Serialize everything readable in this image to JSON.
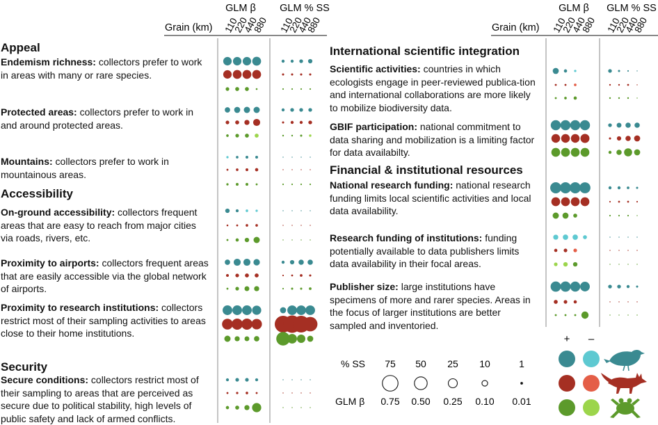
{
  "header": {
    "grain_label": "Grain (km)",
    "col_beta": "GLM β",
    "col_ss": "GLM % SS",
    "grains": [
      "110",
      "220",
      "440",
      "880"
    ]
  },
  "colors": {
    "birds_pos": "#3a8a91",
    "birds_neg": "#5ec9d1",
    "mammals_pos": "#a52f23",
    "mammals_neg": "#e45e47",
    "amphibians_pos": "#5c9a2b",
    "amphibians_neg": "#9cd54b"
  },
  "sections": {
    "appeal": "Appeal",
    "accessibility": "Accessibility",
    "security": "Security",
    "intl": "International scientific integration",
    "financial": "Financial & institutional resources"
  },
  "factors": {
    "endemism": {
      "name": "Endemism richness:",
      "text": " collectors prefer to work in areas with many or rare species."
    },
    "protected": {
      "name": "Protected  areas:",
      "text": " collectors prefer to work in and around protected areas."
    },
    "mountains": {
      "name": "Mountains:",
      "text": " collectors prefer to work in mountainous areas."
    },
    "onground": {
      "name": "On-ground accessibility:",
      "text": " collectors frequent areas that are easy to reach from major cities via roads, rivers, etc."
    },
    "airports": {
      "name": "Proximity to airports:",
      "text": " collectors frequent areas that are easily accessible via the global network of airports."
    },
    "research": {
      "name": "Proximity to research institutions:",
      "text": " collectors restrict most of their sampling activities to areas close to their home institutions."
    },
    "secure": {
      "name": "Secure conditions:",
      "text": " collectors restrict most of their sampling to areas that are perceived as secure due to political stability, high levels of public safety and lack of armed conflicts."
    },
    "scientific": {
      "name": "Scientific activities:",
      "text": " countries in which ecologists engage in peer-reviewed publica-tion and international collaborations are more likely to mobilize biodiversity data."
    },
    "gbif": {
      "name": "GBIF participation:",
      "text": " national commitment to data sharing and mobilization is a limiting factor for data availabilty."
    },
    "funding": {
      "name": "National research funding:",
      "text": " national research funding limits local scientific activities and local data availability."
    },
    "instfunding": {
      "name": "Research funding of institutions:",
      "text": " funding potentially available to data publishers limits data availability in their focal areas."
    },
    "publisher": {
      "name": "Publisher size:",
      "text": " large institutions have specimens of more and rarer species. Areas in the focus of larger institutions are better sampled and inventoried."
    }
  },
  "legend": {
    "plus": "+",
    "minus": "–",
    "ss_label": "% SS",
    "beta_label": "GLM β",
    "ss_values": [
      "75",
      "50",
      "25",
      "10",
      "1"
    ],
    "beta_values": [
      "0.75",
      "0.50",
      "0.25",
      "0.10",
      "0.01"
    ],
    "taxa_icons": [
      "bird-icon",
      "fox-icon",
      "frog-icon"
    ]
  },
  "chart_data": {
    "type": "bubble-grid",
    "grains_km": [
      110,
      220,
      440,
      880
    ],
    "taxa": [
      "birds",
      "mammals",
      "amphibians"
    ],
    "rows": [
      {
        "factor": "endemism",
        "taxon": "birds",
        "beta": [
          0.55,
          0.55,
          0.55,
          0.6
        ],
        "beta_sign": [
          "+",
          "+",
          "+",
          "+"
        ],
        "ss": [
          2,
          2,
          3,
          4
        ],
        "ss_sign": [
          "+",
          "+",
          "+",
          "+"
        ]
      },
      {
        "factor": "endemism",
        "taxon": "mammals",
        "beta": [
          0.55,
          0.6,
          0.6,
          0.6
        ],
        "beta_sign": [
          "+",
          "+",
          "+",
          "+"
        ],
        "ss": [
          1,
          1,
          1,
          1
        ],
        "ss_sign": [
          "+",
          "+",
          "+",
          "+"
        ]
      },
      {
        "factor": "endemism",
        "taxon": "amphibians",
        "beta": [
          0.1,
          0.12,
          0.12,
          0.01
        ],
        "beta_sign": [
          "+",
          "+",
          "+",
          "+"
        ],
        "ss": [
          0.5,
          0.5,
          0.5,
          0.5
        ],
        "ss_sign": [
          "+",
          "+",
          "+",
          "+"
        ]
      },
      {
        "factor": "protected",
        "taxon": "birds",
        "beta": [
          0.22,
          0.28,
          0.3,
          0.3
        ],
        "beta_sign": [
          "+",
          "+",
          "+",
          "+"
        ],
        "ss": [
          2,
          3,
          3,
          3
        ],
        "ss_sign": [
          "+",
          "+",
          "+",
          "+"
        ]
      },
      {
        "factor": "protected",
        "taxon": "mammals",
        "beta": [
          0.1,
          0.12,
          0.2,
          0.38
        ],
        "beta_sign": [
          "+",
          "+",
          "+",
          "+"
        ],
        "ss": [
          1,
          2,
          2,
          3
        ],
        "ss_sign": [
          "+",
          "+",
          "+",
          "+"
        ]
      },
      {
        "factor": "protected",
        "taxon": "amphibians",
        "beta": [
          0.05,
          0.1,
          0.12,
          0.12
        ],
        "beta_sign": [
          "+",
          "+",
          "+",
          "-"
        ],
        "ss": [
          0.6,
          0.6,
          1,
          1.2
        ],
        "ss_sign": [
          "+",
          "+",
          "+",
          "-"
        ]
      },
      {
        "factor": "mountains",
        "taxon": "birds",
        "beta": [
          0.04,
          0.05,
          0.06,
          0.06
        ],
        "beta_sign": [
          "-",
          "+",
          "+",
          "+"
        ],
        "ss": [
          0,
          0,
          0,
          0
        ],
        "ss_sign": [
          "+",
          "+",
          "+",
          "+"
        ]
      },
      {
        "factor": "mountains",
        "taxon": "mammals",
        "beta": [
          0.03,
          0.05,
          0.06,
          0.08
        ],
        "beta_sign": [
          "+",
          "+",
          "+",
          "+"
        ],
        "ss": [
          0,
          0,
          0,
          0
        ],
        "ss_sign": [
          "+",
          "+",
          "+",
          "+"
        ]
      },
      {
        "factor": "mountains",
        "taxon": "amphibians",
        "beta": [
          0.04,
          0.06,
          0.06,
          0.03
        ],
        "beta_sign": [
          "+",
          "+",
          "+",
          "+"
        ],
        "ss": [
          0.5,
          0.5,
          0.5,
          0.5
        ],
        "ss_sign": [
          "+",
          "+",
          "+",
          "+"
        ]
      },
      {
        "factor": "onground",
        "taxon": "birds",
        "beta": [
          0.15,
          0.07,
          0.05,
          0.04
        ],
        "beta_sign": [
          "+",
          "+",
          "-",
          "-"
        ],
        "ss": [
          0,
          0,
          0,
          0
        ],
        "ss_sign": [
          "+",
          "+",
          "+",
          "+"
        ]
      },
      {
        "factor": "onground",
        "taxon": "mammals",
        "beta": [
          0.01,
          0.03,
          0.05,
          0.05
        ],
        "beta_sign": [
          "+",
          "+",
          "+",
          "+"
        ],
        "ss": [
          0,
          0,
          0,
          0
        ],
        "ss_sign": [
          "+",
          "+",
          "+",
          "+"
        ]
      },
      {
        "factor": "onground",
        "taxon": "amphibians",
        "beta": [
          0.03,
          0.08,
          0.15,
          0.3
        ],
        "beta_sign": [
          "+",
          "+",
          "+",
          "+"
        ],
        "ss": [
          0,
          0,
          0,
          0
        ],
        "ss_sign": [
          "+",
          "+",
          "+",
          "+"
        ]
      },
      {
        "factor": "airports",
        "taxon": "birds",
        "beta": [
          0.22,
          0.38,
          0.38,
          0.32
        ],
        "beta_sign": [
          "+",
          "+",
          "+",
          "+"
        ],
        "ss": [
          2,
          4,
          6,
          6
        ],
        "ss_sign": [
          "+",
          "+",
          "+",
          "+"
        ]
      },
      {
        "factor": "airports",
        "taxon": "mammals",
        "beta": [
          0.06,
          0.1,
          0.12,
          0.12
        ],
        "beta_sign": [
          "+",
          "+",
          "+",
          "+"
        ],
        "ss": [
          0.5,
          0.8,
          1.5,
          1
        ],
        "ss_sign": [
          "+",
          "+",
          "+",
          "+"
        ]
      },
      {
        "factor": "airports",
        "taxon": "amphibians",
        "beta": [
          0.03,
          0.1,
          0.18,
          0.2
        ],
        "beta_sign": [
          "+",
          "+",
          "+",
          "+"
        ],
        "ss": [
          0.5,
          1,
          1,
          1.5
        ],
        "ss_sign": [
          "+",
          "+",
          "+",
          "+"
        ]
      },
      {
        "factor": "research",
        "taxon": "birds",
        "beta": [
          0.72,
          0.72,
          0.72,
          0.65
        ],
        "beta_sign": [
          "+",
          "+",
          "+",
          "+"
        ],
        "ss": [
          8,
          20,
          20,
          20
        ],
        "ss_sign": [
          "+",
          "+",
          "+",
          "+"
        ]
      },
      {
        "factor": "research",
        "taxon": "mammals",
        "beta": [
          0.9,
          0.95,
          0.95,
          0.85
        ],
        "beta_sign": [
          "+",
          "+",
          "+",
          "+"
        ],
        "ss": [
          60,
          65,
          60,
          45
        ],
        "ss_sign": [
          "+",
          "+",
          "+",
          "+"
        ]
      },
      {
        "factor": "research",
        "taxon": "amphibians",
        "beta": [
          0.3,
          0.2,
          0.18,
          0.22
        ],
        "beta_sign": [
          "+",
          "+",
          "+",
          "+"
        ],
        "ss": [
          40,
          20,
          15,
          8
        ],
        "ss_sign": [
          "+",
          "+",
          "+",
          "+"
        ]
      },
      {
        "factor": "secure",
        "taxon": "birds",
        "beta": [
          0.07,
          0.1,
          0.1,
          0.07
        ],
        "beta_sign": [
          "+",
          "+",
          "+",
          "+"
        ],
        "ss": [
          0,
          0,
          0,
          0
        ],
        "ss_sign": [
          "+",
          "+",
          "+",
          "+"
        ]
      },
      {
        "factor": "secure",
        "taxon": "mammals",
        "beta": [
          0.03,
          0.04,
          0.05,
          0.03
        ],
        "beta_sign": [
          "+",
          "+",
          "+",
          "+"
        ],
        "ss": [
          0,
          0,
          0,
          0
        ],
        "ss_sign": [
          "+",
          "+",
          "+",
          "+"
        ]
      },
      {
        "factor": "secure",
        "taxon": "amphibians",
        "beta": [
          0.08,
          0.12,
          0.2,
          0.65
        ],
        "beta_sign": [
          "+",
          "+",
          "+",
          "+"
        ],
        "ss": [
          0,
          0,
          0,
          0
        ],
        "ss_sign": [
          "+",
          "+",
          "+",
          "+"
        ]
      },
      {
        "factor": "scientific",
        "taxon": "birds",
        "beta": [
          0.28,
          0.08,
          0.04,
          0
        ],
        "beta_sign": [
          "+",
          "+",
          "-",
          "+"
        ],
        "ss": [
          3,
          1,
          0.5,
          0
        ],
        "ss_sign": [
          "+",
          "+",
          "+",
          "+"
        ]
      },
      {
        "factor": "scientific",
        "taxon": "mammals",
        "beta": [
          0.03,
          0.03,
          0.05,
          0
        ],
        "beta_sign": [
          "+",
          "+",
          "-",
          "+"
        ],
        "ss": [
          0.6,
          0.6,
          0.8,
          0
        ],
        "ss_sign": [
          "+",
          "+",
          "+",
          "+"
        ]
      },
      {
        "factor": "scientific",
        "taxon": "amphibians",
        "beta": [
          0.03,
          0.05,
          0.08,
          0
        ],
        "beta_sign": [
          "+",
          "+",
          "+",
          "+"
        ],
        "ss": [
          0.6,
          0.6,
          0.6,
          0
        ],
        "ss_sign": [
          "+",
          "+",
          "+",
          "+"
        ]
      },
      {
        "factor": "gbif",
        "taxon": "birds",
        "beta": [
          0.78,
          0.78,
          0.78,
          0.78
        ],
        "beta_sign": [
          "+",
          "+",
          "+",
          "+"
        ],
        "ss": [
          3,
          5,
          6,
          6
        ],
        "ss_sign": [
          "+",
          "+",
          "+",
          "+"
        ]
      },
      {
        "factor": "gbif",
        "taxon": "mammals",
        "beta": [
          0.58,
          0.58,
          0.58,
          0.62
        ],
        "beta_sign": [
          "+",
          "+",
          "+",
          "+"
        ],
        "ss": [
          1,
          4,
          6,
          8
        ],
        "ss_sign": [
          "+",
          "+",
          "+",
          "+"
        ]
      },
      {
        "factor": "gbif",
        "taxon": "amphibians",
        "beta": [
          0.6,
          0.6,
          0.6,
          0.6
        ],
        "beta_sign": [
          "+",
          "+",
          "+",
          "+"
        ],
        "ss": [
          2,
          6,
          14,
          8
        ],
        "ss_sign": [
          "+",
          "+",
          "+",
          "+"
        ]
      },
      {
        "factor": "funding",
        "taxon": "birds",
        "beta": [
          0.95,
          0.95,
          0.95,
          0.92
        ],
        "beta_sign": [
          "+",
          "+",
          "+",
          "+"
        ],
        "ss": [
          2,
          2,
          1.5,
          1
        ],
        "ss_sign": [
          "+",
          "+",
          "+",
          "+"
        ]
      },
      {
        "factor": "funding",
        "taxon": "mammals",
        "beta": [
          0.6,
          0.6,
          0.6,
          0.6
        ],
        "beta_sign": [
          "+",
          "+",
          "+",
          "+"
        ],
        "ss": [
          0.5,
          0.8,
          0.8,
          0.5
        ],
        "ss_sign": [
          "+",
          "+",
          "+",
          "+"
        ]
      },
      {
        "factor": "funding",
        "taxon": "amphibians",
        "beta": [
          0.3,
          0.28,
          0.12,
          0
        ],
        "beta_sign": [
          "+",
          "+",
          "+",
          "+"
        ],
        "ss": [
          0.5,
          0.5,
          0.5,
          0
        ],
        "ss_sign": [
          "+",
          "+",
          "+",
          "+"
        ]
      },
      {
        "factor": "instfunding",
        "taxon": "birds",
        "beta": [
          0.2,
          0.22,
          0.22,
          0.12
        ],
        "beta_sign": [
          "-",
          "-",
          "-",
          "-"
        ],
        "ss": [
          0,
          0,
          0,
          0
        ],
        "ss_sign": [
          "+",
          "+",
          "+",
          "+"
        ]
      },
      {
        "factor": "instfunding",
        "taxon": "mammals",
        "beta": [
          0.08,
          0.1,
          0.1,
          0
        ],
        "beta_sign": [
          "+",
          "+",
          "-",
          "+"
        ],
        "ss": [
          0,
          0,
          0,
          0
        ],
        "ss_sign": [
          "+",
          "+",
          "+",
          "+"
        ]
      },
      {
        "factor": "instfunding",
        "taxon": "amphibians",
        "beta": [
          0.1,
          0.15,
          0.15,
          0
        ],
        "beta_sign": [
          "-",
          "-",
          "+",
          "+"
        ],
        "ss": [
          0,
          0,
          0,
          0
        ],
        "ss_sign": [
          "+",
          "+",
          "+",
          "+"
        ]
      },
      {
        "factor": "publisher",
        "taxon": "birds",
        "beta": [
          0.82,
          0.82,
          0.78,
          0.72
        ],
        "beta_sign": [
          "+",
          "+",
          "+",
          "+"
        ],
        "ss": [
          3,
          3,
          2,
          1
        ],
        "ss_sign": [
          "+",
          "+",
          "+",
          "+"
        ]
      },
      {
        "factor": "publisher",
        "taxon": "mammals",
        "beta": [
          0.12,
          0.1,
          0.08,
          0
        ],
        "beta_sign": [
          "+",
          "+",
          "+",
          "+"
        ],
        "ss": [
          0,
          0,
          0,
          0
        ],
        "ss_sign": [
          "+",
          "+",
          "+",
          "+"
        ]
      },
      {
        "factor": "publisher",
        "taxon": "amphibians",
        "beta": [
          0.03,
          0.03,
          0.03,
          0.4
        ],
        "beta_sign": [
          "+",
          "+",
          "+",
          "+"
        ],
        "ss": [
          0,
          0,
          0,
          0
        ],
        "ss_sign": [
          "+",
          "+",
          "+",
          "+"
        ]
      }
    ],
    "legend_ss": [
      75,
      50,
      25,
      10,
      1
    ],
    "legend_beta": [
      0.75,
      0.5,
      0.25,
      0.1,
      0.01
    ]
  }
}
